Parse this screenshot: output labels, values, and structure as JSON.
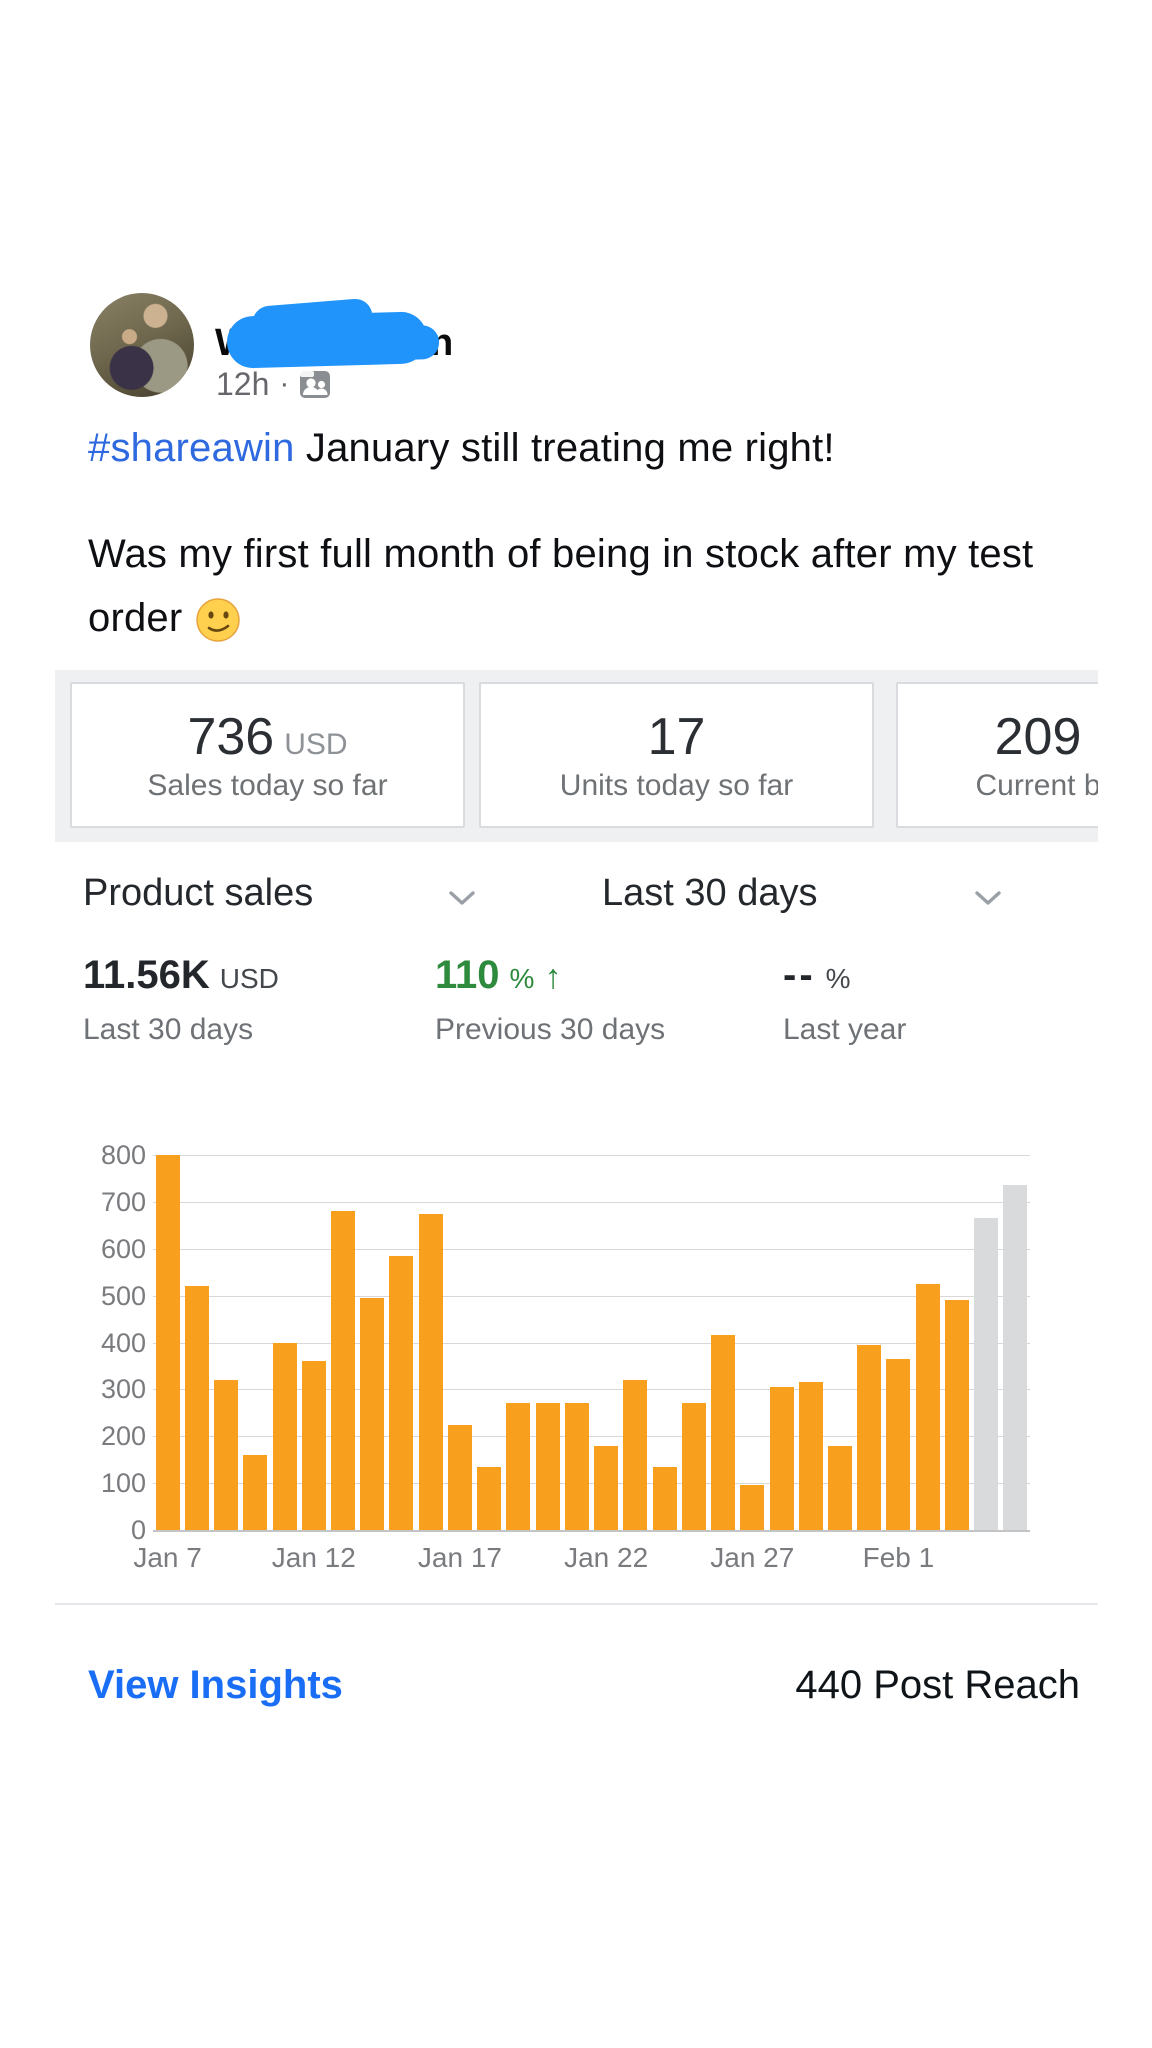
{
  "post": {
    "author": {
      "visible_fragment_left": "W",
      "visible_fragment_right": "n",
      "redacted": true
    },
    "timestamp": "12h",
    "meta_dot": "·",
    "audience_icon": "friends-icon",
    "text": {
      "hashtag": "#shareawin",
      "line1_rest": " January still treating me right!",
      "line2": "Was my first full month of being in stock after my test",
      "line3": "order",
      "emoji": "smirking-face"
    }
  },
  "dashboard": {
    "stat_cards": [
      {
        "value": "736",
        "unit": "USD",
        "label": "Sales today so far"
      },
      {
        "value": "17",
        "label": "Units today so far"
      },
      {
        "value": "209",
        "label": "Current b"
      }
    ],
    "selectors": {
      "metric": "Product sales",
      "range": "Last 30 days"
    },
    "metrics": [
      {
        "value": "11.56K",
        "unit": "USD",
        "label": "Last 30 days"
      },
      {
        "value": "110",
        "unit": "%",
        "arrow": "↑",
        "label": "Previous 30 days"
      },
      {
        "value": "--",
        "unit": "%",
        "label": "Last year"
      }
    ]
  },
  "chart_data": {
    "type": "bar",
    "title": "Product sales - Last 30 days",
    "xlabel": "",
    "ylabel": "",
    "ylim": [
      0,
      800
    ],
    "grid": "horizontal",
    "categories": [
      "Jan 7",
      "Jan 8",
      "Jan 9",
      "Jan 10",
      "Jan 11",
      "Jan 12",
      "Jan 13",
      "Jan 14",
      "Jan 15",
      "Jan 16",
      "Jan 17",
      "Jan 18",
      "Jan 19",
      "Jan 20",
      "Jan 21",
      "Jan 22",
      "Jan 23",
      "Jan 24",
      "Jan 25",
      "Jan 26",
      "Jan 27",
      "Jan 28",
      "Jan 29",
      "Jan 30",
      "Jan 31",
      "Feb 1",
      "Feb 2",
      "Feb 3",
      "Feb 4",
      "Feb 5"
    ],
    "values": [
      800,
      520,
      320,
      160,
      400,
      360,
      680,
      495,
      585,
      675,
      225,
      135,
      270,
      270,
      270,
      180,
      320,
      135,
      270,
      415,
      95,
      305,
      315,
      180,
      395,
      365,
      525,
      490,
      665,
      735
    ],
    "gray_from_index": 28,
    "bar_color": "#f8a01d",
    "bar_color_incomplete": "#d9dadb",
    "y_ticks": [
      0,
      100,
      200,
      300,
      400,
      500,
      600,
      700,
      800
    ],
    "x_ticks": [
      {
        "label": "Jan 7",
        "index": 0
      },
      {
        "label": "Jan 12",
        "index": 5
      },
      {
        "label": "Jan 17",
        "index": 10
      },
      {
        "label": "Jan 22",
        "index": 15
      },
      {
        "label": "Jan 27",
        "index": 20
      },
      {
        "label": "Feb 1",
        "index": 25
      }
    ]
  },
  "footer": {
    "link": "View Insights",
    "reach": "440 Post Reach"
  },
  "colors": {
    "hashtag_blue": "#2e69df",
    "scribble_blue": "#2094fa",
    "link_blue": "#1a6ef5",
    "metric_green": "#2e8b3e",
    "bar_orange": "#f8a01d",
    "bar_gray": "#d9dadb"
  }
}
